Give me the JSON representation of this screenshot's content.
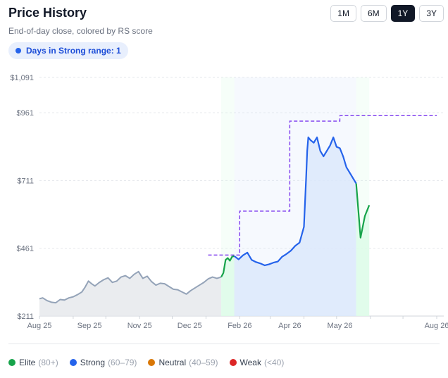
{
  "header": {
    "title": "Price History",
    "subtitle": "End-of-day close, colored by RS score",
    "badge": "Days in Strong range: 1"
  },
  "range_buttons": [
    {
      "label": "1M",
      "active": false
    },
    {
      "label": "6M",
      "active": false
    },
    {
      "label": "1Y",
      "active": true
    },
    {
      "label": "3Y",
      "active": false
    }
  ],
  "legend": [
    {
      "label": "Elite",
      "range": "(80+)",
      "color": "#16a34a"
    },
    {
      "label": "Strong",
      "range": "(60–79)",
      "color": "#2563eb"
    },
    {
      "label": "Neutral",
      "range": "(40–59)",
      "color": "#d97706"
    },
    {
      "label": "Weak",
      "range": "(<40)",
      "color": "#dc2626"
    }
  ],
  "colors": {
    "none": "#94a3b8",
    "elite": "#16a34a",
    "strong": "#2563eb",
    "neutral": "#d97706",
    "weak": "#dc2626"
  },
  "chart_data": {
    "type": "line",
    "ylim": [
      211,
      1091
    ],
    "yticks": [
      211,
      461,
      711,
      961,
      1091
    ],
    "ytick_labels": [
      "$211",
      "$461",
      "$711",
      "$961",
      "$1,091"
    ],
    "xlim": [
      "2025-08-13",
      "2026-08-13"
    ],
    "xticks": [
      "2025-08-13",
      "2025-09-13",
      "2025-10-13",
      "2025-11-13",
      "2025-12-13",
      "2026-01-13",
      "2026-02-13",
      "2026-03-13",
      "2026-04-13",
      "2026-05-13",
      "2026-06-13",
      "2026-07-13",
      "2026-08-13"
    ],
    "xtick_labels": [
      "Aug 25",
      "Sep 25",
      "Nov 25",
      "Dec 25",
      "Feb 26",
      "Apr 26",
      "May 26",
      "Aug 26"
    ],
    "xtick_label_dates": [
      "2025-08-13",
      "2025-09-28",
      "2025-11-13",
      "2025-12-29",
      "2026-02-13",
      "2026-03-31",
      "2026-05-16",
      "2026-08-13"
    ],
    "grid": true,
    "series": [
      {
        "rs_class": "none",
        "points": [
          [
            "2025-08-13",
            275
          ],
          [
            "2025-08-16",
            278
          ],
          [
            "2025-08-20",
            268
          ],
          [
            "2025-08-24",
            262
          ],
          [
            "2025-08-28",
            260
          ],
          [
            "2025-09-01",
            272
          ],
          [
            "2025-09-05",
            270
          ],
          [
            "2025-09-09",
            278
          ],
          [
            "2025-09-13",
            282
          ],
          [
            "2025-09-17",
            290
          ],
          [
            "2025-09-21",
            300
          ],
          [
            "2025-09-24",
            318
          ],
          [
            "2025-09-27",
            340
          ],
          [
            "2025-09-30",
            330
          ],
          [
            "2025-10-03",
            322
          ],
          [
            "2025-10-07",
            335
          ],
          [
            "2025-10-11",
            345
          ],
          [
            "2025-10-15",
            352
          ],
          [
            "2025-10-19",
            335
          ],
          [
            "2025-10-23",
            340
          ],
          [
            "2025-10-27",
            355
          ],
          [
            "2025-10-31",
            360
          ],
          [
            "2025-11-04",
            350
          ],
          [
            "2025-11-08",
            365
          ],
          [
            "2025-11-12",
            375
          ],
          [
            "2025-11-16",
            350
          ],
          [
            "2025-11-20",
            358
          ],
          [
            "2025-11-24",
            338
          ],
          [
            "2025-11-28",
            325
          ],
          [
            "2025-12-02",
            332
          ],
          [
            "2025-12-06",
            330
          ],
          [
            "2025-12-10",
            320
          ],
          [
            "2025-12-14",
            310
          ],
          [
            "2025-12-18",
            308
          ],
          [
            "2025-12-22",
            300
          ],
          [
            "2025-12-26",
            292
          ],
          [
            "2025-12-30",
            305
          ],
          [
            "2026-01-03",
            315
          ],
          [
            "2026-01-07",
            325
          ],
          [
            "2026-01-11",
            335
          ],
          [
            "2026-01-15",
            348
          ],
          [
            "2026-01-19",
            355
          ],
          [
            "2026-01-23",
            350
          ],
          [
            "2026-01-27",
            355
          ]
        ]
      },
      {
        "rs_class": "elite",
        "points": [
          [
            "2026-01-27",
            355
          ],
          [
            "2026-01-29",
            370
          ],
          [
            "2026-01-31",
            418
          ],
          [
            "2026-02-02",
            425
          ],
          [
            "2026-02-04",
            415
          ],
          [
            "2026-02-06",
            430
          ],
          [
            "2026-02-08",
            432
          ]
        ]
      },
      {
        "rs_class": "strong",
        "points": [
          [
            "2026-02-08",
            432
          ],
          [
            "2026-02-12",
            420
          ],
          [
            "2026-02-16",
            435
          ],
          [
            "2026-02-20",
            445
          ],
          [
            "2026-02-24",
            418
          ],
          [
            "2026-02-28",
            410
          ],
          [
            "2026-03-04",
            405
          ],
          [
            "2026-03-08",
            398
          ],
          [
            "2026-03-12",
            402
          ],
          [
            "2026-03-16",
            408
          ],
          [
            "2026-03-20",
            412
          ],
          [
            "2026-03-24",
            430
          ],
          [
            "2026-03-28",
            440
          ],
          [
            "2026-04-01",
            452
          ],
          [
            "2026-04-05",
            470
          ],
          [
            "2026-04-09",
            482
          ],
          [
            "2026-04-13",
            540
          ],
          [
            "2026-04-15",
            720
          ],
          [
            "2026-04-16",
            820
          ],
          [
            "2026-04-17",
            870
          ],
          [
            "2026-04-19",
            860
          ],
          [
            "2026-04-22",
            850
          ],
          [
            "2026-04-25",
            870
          ],
          [
            "2026-04-28",
            820
          ],
          [
            "2026-05-01",
            800
          ],
          [
            "2026-05-04",
            820
          ],
          [
            "2026-05-07",
            840
          ],
          [
            "2026-05-10",
            870
          ],
          [
            "2026-05-13",
            835
          ],
          [
            "2026-05-16",
            830
          ],
          [
            "2026-05-19",
            800
          ],
          [
            "2026-05-22",
            760
          ],
          [
            "2026-05-25",
            740
          ],
          [
            "2026-05-28",
            720
          ],
          [
            "2026-05-31",
            700
          ]
        ]
      },
      {
        "rs_class": "elite",
        "points": [
          [
            "2026-05-31",
            700
          ],
          [
            "2026-06-02",
            600
          ],
          [
            "2026-06-04",
            500
          ],
          [
            "2026-06-06",
            540
          ],
          [
            "2026-06-08",
            580
          ],
          [
            "2026-06-10",
            600
          ],
          [
            "2026-06-12",
            620
          ]
        ]
      }
    ],
    "rs_range_steps": [
      [
        "2026-01-15",
        436
      ],
      [
        "2026-02-13",
        436
      ],
      [
        "2026-02-13",
        598
      ],
      [
        "2026-03-31",
        598
      ],
      [
        "2026-03-31",
        930
      ],
      [
        "2026-05-16",
        930
      ],
      [
        "2026-05-16",
        950
      ],
      [
        "2026-08-13",
        950
      ]
    ],
    "score_bands": [
      {
        "start": "2026-01-27",
        "end": "2026-02-08",
        "class": "elite"
      },
      {
        "start": "2026-02-08",
        "end": "2026-05-31",
        "class": "strong"
      },
      {
        "start": "2026-05-31",
        "end": "2026-06-12",
        "class": "elite"
      }
    ]
  }
}
